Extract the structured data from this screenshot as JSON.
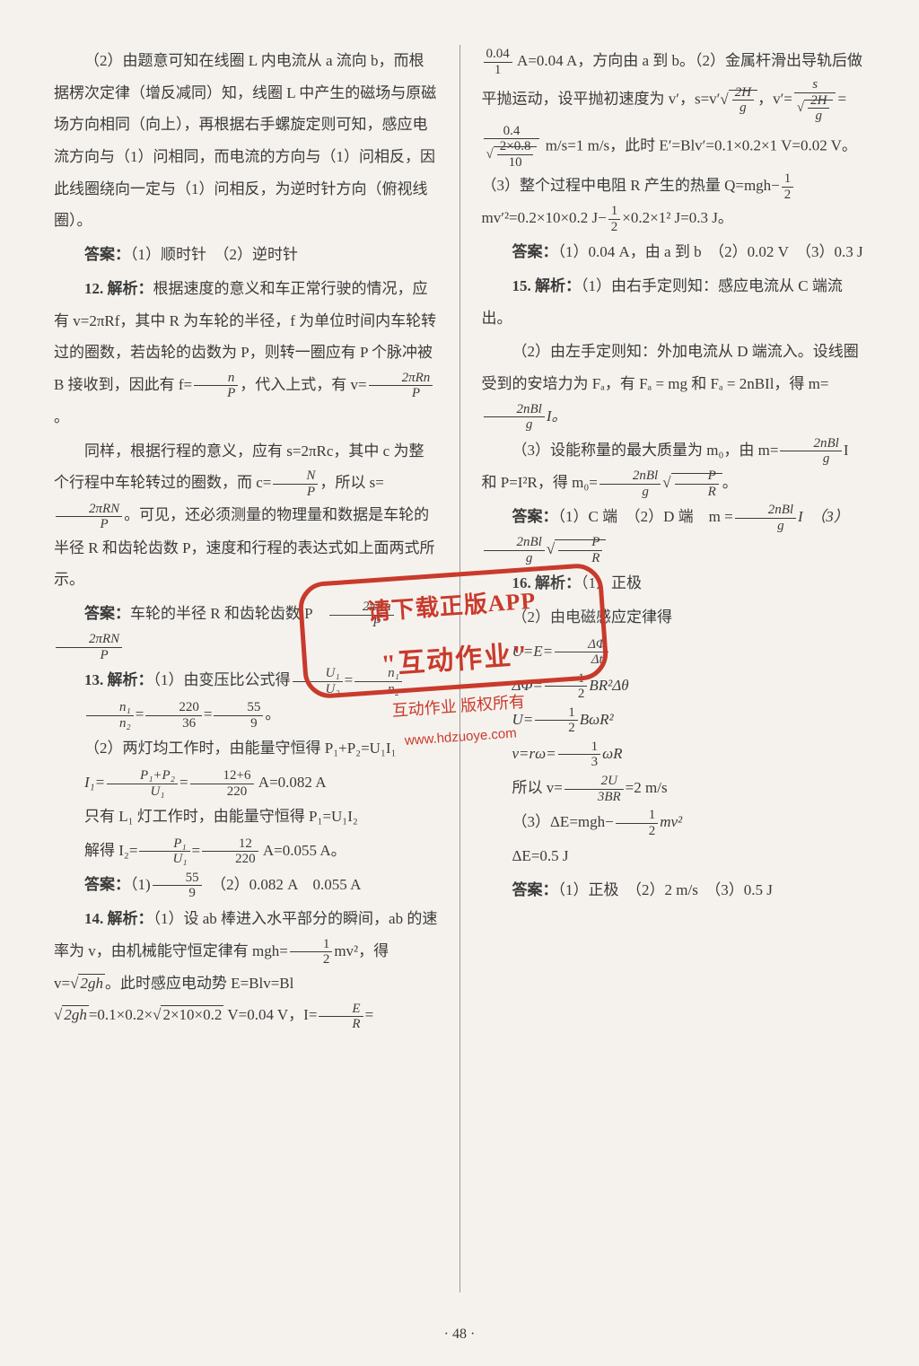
{
  "page_number": "· 48 ·",
  "background_color": "#f5f2ed",
  "text_color": "#3a3a3a",
  "stamp_color": "#c93a2c",
  "stamp": {
    "line1": "请下载正版APP",
    "line2": "\"互动作业\"",
    "line3": "互动作业 版权所有",
    "line4": "www.hdzuoye.com"
  },
  "left": {
    "p1": "（2）由题意可知在线圈 L 内电流从 a 流向 b，而根据楞次定律（增反减同）知，线圈 L 中产生的磁场与原磁场方向相同（向上），再根据右手螺旋定则可知，感应电流方向与（1）问相同，而电流的方向与（1）问相反，因此线圈绕向一定与（1）问相反，为逆时针方向（俯视线圈）。",
    "ans11_label": "答案：",
    "ans11": "（1）顺时针　（2）逆时针",
    "q12_label": "12. 解析：",
    "q12a": "根据速度的意义和车正常行驶的情况，应有 v=2πRf，其中 R 为车轮的半径，f 为单位时间内车轮转过的圈数，若齿轮的齿数为 P，则转一圈应有 P 个脉冲被 B 接收到，因此有 f=",
    "q12a_frac_n": "n",
    "q12a_frac_d": "P",
    "q12a_tail": "，代入上式，有 v=",
    "q12a2_frac_n": "2πRn",
    "q12a2_frac_d": "P",
    "q12a2_tail": "。",
    "q12b": "同样，根据行程的意义，应有 s=2πRc，其中 c 为整个行程中车轮转过的圈数，而 c=",
    "q12b_frac_n": "N",
    "q12b_frac_d": "P",
    "q12b_mid": "，所以 s=",
    "q12b2_frac_n": "2πRN",
    "q12b2_frac_d": "P",
    "q12b_tail": "。可见，还必须测量的物理量和数据是车轮的半径 R 和齿轮齿数 P，速度和行程的表达式如上面两式所示。",
    "ans12_label": "答案：",
    "ans12a": "车轮的半径 R 和齿轮齿数 P　",
    "ans12_f1n": "2πRn",
    "ans12_f1d": "P",
    "ans12_f2n": "2πRN",
    "ans12_f2d": "P",
    "q13_label": "13. 解析：",
    "q13a": "（1）由变压比公式得",
    "q13_f1n": "U₁",
    "q13_f1d": "U₂",
    "q13_eq": "=",
    "q13_f2n": "n₁",
    "q13_f2d": "n₂",
    "q13b_f1n": "n₁",
    "q13b_f1d": "n₂",
    "q13b_eq1": "=",
    "q13b_f2n": "220",
    "q13b_f2d": "36",
    "q13b_eq2": "=",
    "q13b_f3n": "55",
    "q13b_f3d": "9",
    "q13b_tail": "。",
    "q13c": "（2）两灯均工作时，由能量守恒得 P₁+P₂=U₁I₁",
    "q13d_pre": "I₁=",
    "q13d_f1n": "P₁+P₂",
    "q13d_f1d": "U₁",
    "q13d_eq": "=",
    "q13d_f2n": "12+6",
    "q13d_f2d": "220",
    "q13d_tail": " A=0.082 A",
    "q13e": "只有 L₁ 灯工作时，由能量守恒得 P₁=U₁I₂",
    "q13f_pre": "解得 I₂=",
    "q13f_f1n": "P₁",
    "q13f_f1d": "U₁",
    "q13f_eq": "=",
    "q13f_f2n": "12",
    "q13f_f2d": "220",
    "q13f_tail": " A=0.055 A。",
    "ans13_label": "答案：",
    "ans13": "（1)",
    "ans13_fn": "55",
    "ans13_fd": "9",
    "ans13_tail": "　（2）0.082 A　0.055 A",
    "q14_label": "14. 解析：",
    "q14a": "（1）设 ab 棒进入水平部分的瞬间，ab 的速率为 v，由机械能守恒定律有 mgh=",
    "q14a_fn": "1",
    "q14a_fd": "2",
    "q14a_mid": "mv²，得 v=",
    "q14a_sqrt": "2gh",
    "q14a_tail": "。此时感应电动势 E=Blv=Bl ",
    "q14a_sqrt2": "2gh",
    "q14a_tail2": "=0.1×0.2×",
    "q14a_sqrt3": "2×10×0.2",
    "q14a_tail3": " V=0.04 V，I=",
    "q14a_f2n": "E",
    "q14a_f2d": "R",
    "q14a_eq": "="
  },
  "right": {
    "p1_fn": "0.04",
    "p1_fd": "1",
    "p1a": " A=0.04 A，方向由 a 到 b。（2）金属杆滑出导轨后做平抛运动，设平抛初速度为 v′，s=v′",
    "p1_sqrt_fn": "2H",
    "p1_sqrt_fd": "g",
    "p1b": "，v′=",
    "p1_f2_n": "s",
    "p1_f2_dn": "2H",
    "p1_f2_dd": "g",
    "p1c": "=",
    "p1_f3n": "0.4",
    "p1_f3_dn": "2×0.8",
    "p1_f3_dd": "10",
    "p1d": " m/s=1 m/s，此时 E′=Blv′=0.1×0.2×1 V=0.02 V。（3）整个过程中电阻 R 产生的热量 Q=mgh−",
    "p1_f4n": "1",
    "p1_f4d": "2",
    "p1e": "mv′²=0.2×10×0.2 J−",
    "p1_f5n": "1",
    "p1_f5d": "2",
    "p1f": "×0.2×1² J=0.3 J。",
    "ans14_label": "答案：",
    "ans14": "（1）0.04 A，由 a 到 b　（2）0.02 V　（3）0.3 J",
    "q15_label": "15. 解析：",
    "q15a": "（1）由右手定则知：感应电流从 C 端流出。",
    "q15b": "（2）由左手定则知：外加电流从 D 端流入。设线圈受到的安培力为 Fₐ，有 Fₐ = mg 和 Fₐ = 2nBIl，得 m=",
    "q15b_fn": "2nBl",
    "q15b_fd": "g",
    "q15b_tail": "I。",
    "q15c": "（3）设能称量的最大质量为 m₀，由 m=",
    "q15c_fn": "2nBl",
    "q15c_fd": "g",
    "q15c_mid": "I 和 P=I²R，得 m₀=",
    "q15c_f2n": "2nBl",
    "q15c_f2d": "g",
    "q15c_sqrt_n": "P",
    "q15c_sqrt_d": "R",
    "q15c_tail": "。",
    "ans15_label": "答案：",
    "ans15a": "（1）C 端　（2）D 端　m =",
    "ans15_fn": "2nBl",
    "ans15_fd": "g",
    "ans15_mid": "I　（3）",
    "ans15_f2n": "2nBl",
    "ans15_f2d": "g",
    "ans15_sqrt_n": "P",
    "ans15_sqrt_d": "R",
    "q16_label": "16. 解析：",
    "q16a": "（1）正极",
    "q16b": "（2）由电磁感应定律得",
    "q16c_pre": "U=E=",
    "q16c_fn": "ΔΦ",
    "q16c_fd": "Δt",
    "q16d_pre": "ΔΦ=",
    "q16d_fn": "1",
    "q16d_fd": "2",
    "q16d_tail": "BR²Δθ",
    "q16e_pre": "U=",
    "q16e_fn": "1",
    "q16e_fd": "2",
    "q16e_tail": "BωR²",
    "q16f_pre": "v=rω=",
    "q16f_fn": "1",
    "q16f_fd": "3",
    "q16f_tail": "ωR",
    "q16g_pre": "所以 v=",
    "q16g_fn": "2U",
    "q16g_fd": "3BR",
    "q16g_tail": "=2 m/s",
    "q16h_pre": "（3）ΔE=mgh−",
    "q16h_fn": "1",
    "q16h_fd": "2",
    "q16h_tail": "mv²",
    "q16i": "ΔE=0.5 J",
    "ans16_label": "答案：",
    "ans16": "（1）正极　（2）2 m/s　（3）0.5 J"
  }
}
